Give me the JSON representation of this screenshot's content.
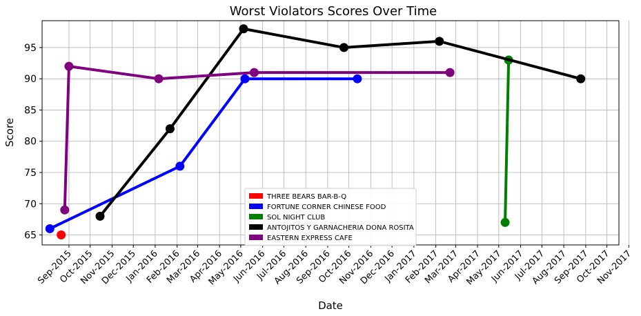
{
  "chart_data": {
    "type": "line",
    "title": "Worst Violators Scores Over Time",
    "xlabel": "Date",
    "ylabel": "Score",
    "x_ticks": [
      "Sep-2015",
      "Oct-2015",
      "Nov-2015",
      "Dec-2015",
      "Jan-2016",
      "Feb-2016",
      "Mar-2016",
      "Apr-2016",
      "May-2016",
      "Jun-2016",
      "Jul-2016",
      "Aug-2016",
      "Sep-2016",
      "Oct-2016",
      "Nov-2016",
      "Dec-2016",
      "Jan-2017",
      "Feb-2017",
      "Mar-2017",
      "Apr-2017",
      "May-2017",
      "Jun-2017",
      "Jul-2017",
      "Aug-2017",
      "Sep-2017",
      "Oct-2017",
      "Nov-2017"
    ],
    "xlim": [
      "2015-07-25",
      "2017-10-18"
    ],
    "y_ticks": [
      65,
      70,
      75,
      80,
      85,
      90,
      95
    ],
    "ylim": [
      63.4,
      99.3
    ],
    "grid": true,
    "legend_position": "lower-center",
    "series": [
      {
        "name": "THREE BEARS BAR-B-Q",
        "color": "#ff0000",
        "points": [
          {
            "date": "2015-08-21",
            "score": 65
          }
        ]
      },
      {
        "name": "FORTUNE CORNER CHINESE FOOD",
        "color": "#0000ff",
        "points": [
          {
            "date": "2015-08-05",
            "score": 66
          },
          {
            "date": "2016-02-05",
            "score": 76
          },
          {
            "date": "2016-05-07",
            "score": 90
          },
          {
            "date": "2016-10-13",
            "score": 90
          }
        ]
      },
      {
        "name": "SOL NIGHT CLUB",
        "color": "#008000",
        "points": [
          {
            "date": "2017-05-10",
            "score": 67
          },
          {
            "date": "2017-05-15",
            "score": 93
          }
        ]
      },
      {
        "name": "ANTOJITOS Y GARNACHERIA DONA ROSITA",
        "color": "#000000",
        "points": [
          {
            "date": "2015-10-15",
            "score": 68
          },
          {
            "date": "2016-01-22",
            "score": 82
          },
          {
            "date": "2016-05-05",
            "score": 98
          },
          {
            "date": "2016-09-24",
            "score": 95
          },
          {
            "date": "2017-02-06",
            "score": 96
          },
          {
            "date": "2017-08-25",
            "score": 90
          }
        ]
      },
      {
        "name": "EASTERN EXPRESS CAFE",
        "color": "#800080",
        "points": [
          {
            "date": "2015-08-26",
            "score": 69
          },
          {
            "date": "2015-09-01",
            "score": 92
          },
          {
            "date": "2016-01-06",
            "score": 90
          },
          {
            "date": "2016-05-20",
            "score": 91
          },
          {
            "date": "2017-02-21",
            "score": 91
          }
        ]
      }
    ]
  }
}
